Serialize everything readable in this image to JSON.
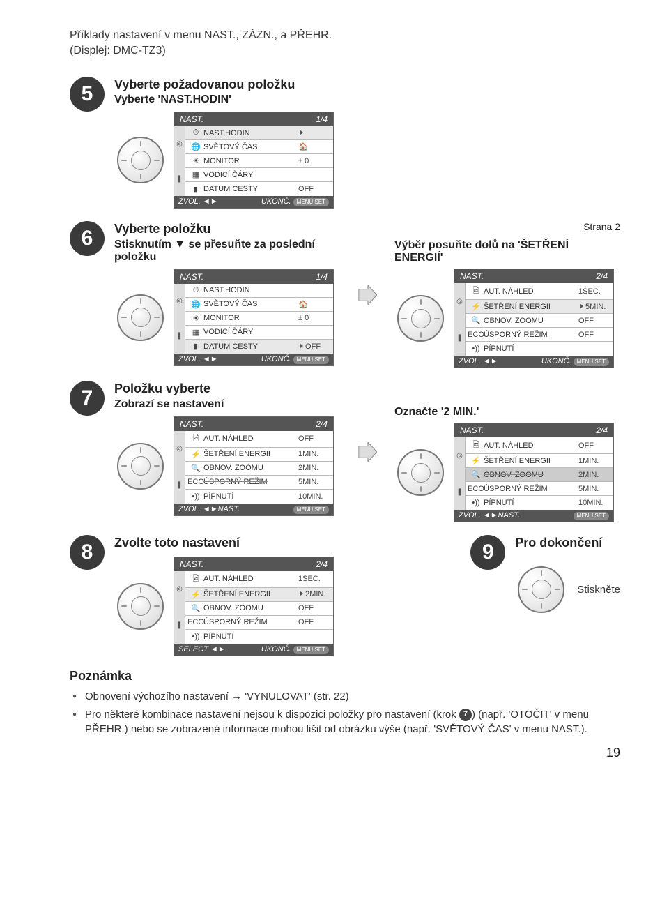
{
  "intro": {
    "line1": "Příklady nastavení v menu NAST., ZÁZN., a PŘEHR.",
    "line2": "(Displej: DMC-TZ3)"
  },
  "steps": {
    "s5": {
      "num": "5",
      "title": "Vyberte požadovanou položku",
      "sub": "Vyberte 'NAST.HODIN'",
      "menu": {
        "header_l": "NAST.",
        "header_r": "1/4",
        "rows": [
          {
            "ico": "⏱",
            "lbl": "NAST.HODIN",
            "val": "",
            "sel": true,
            "tri": true
          },
          {
            "ico": "🌐",
            "lbl": "SVĚTOVÝ ČAS",
            "val": "🏠"
          },
          {
            "ico": "☀",
            "lbl": "MONITOR",
            "val": "± 0"
          },
          {
            "ico": "▦",
            "lbl": "VODICÍ ČÁRY",
            "val": ""
          },
          {
            "ico": "▮",
            "lbl": "DATUM CESTY",
            "val": "OFF"
          }
        ],
        "footer_l": "ZVOL. ◄►",
        "footer_r": "UKONČ.",
        "footer_badge": "MENU SET"
      }
    },
    "s6": {
      "num": "6",
      "title": "Vyberte položku",
      "sub": "Stisknutím ▼ se přesuňte za poslední položku",
      "menuL": {
        "header_l": "NAST.",
        "header_r": "1/4",
        "rows": [
          {
            "ico": "⏱",
            "lbl": "NAST.HODIN",
            "val": ""
          },
          {
            "ico": "🌐",
            "lbl": "SVĚTOVÝ ČAS",
            "val": "🏠"
          },
          {
            "ico": "☀",
            "lbl": "MONITOR",
            "val": "± 0"
          },
          {
            "ico": "▦",
            "lbl": "VODICÍ ČÁRY",
            "val": ""
          },
          {
            "ico": "▮",
            "lbl": "DATUM CESTY",
            "val": "OFF",
            "sel": true,
            "tri": true
          }
        ],
        "footer_l": "ZVOL. ◄►",
        "footer_r": "UKONČ.",
        "footer_badge": "MENU SET"
      },
      "annoR_top": "Výběr posuňte dolů na 'ŠETŘENÍ ENERGIÍ'",
      "page_ref": "Strana 2",
      "menuR": {
        "header_l": "NAST.",
        "header_r": "2/4",
        "rows": [
          {
            "ico": "🖻",
            "lbl": "AUT. NÁHLED",
            "val": "1SEC."
          },
          {
            "ico": "⚡",
            "lbl": "ŠETŘENÍ ENERGII",
            "val": "5MIN.",
            "sel": true,
            "tri": true
          },
          {
            "ico": "🔍",
            "lbl": "OBNOV. ZOOMU",
            "val": "OFF"
          },
          {
            "ico": "ECO",
            "lbl": "ÚSPORNÝ REŽIM",
            "val": "OFF"
          },
          {
            "ico": "•))",
            "lbl": "PÍPNUTÍ",
            "val": ""
          }
        ],
        "footer_l": "ZVOL. ◄►",
        "footer_r": "UKONČ.",
        "footer_badge": "MENU SET"
      }
    },
    "s7": {
      "num": "7",
      "title": "Položku vyberte",
      "sub": "Zobrazí se nastavení",
      "menuL": {
        "header_l": "NAST.",
        "header_r": "2/4",
        "rows": [
          {
            "ico": "🖻",
            "lbl": "AUT. NÁHLED",
            "val": "OFF"
          },
          {
            "ico": "⚡",
            "lbl": "ŠETŘENÍ ENERGII",
            "val": "1MIN."
          },
          {
            "ico": "🔍",
            "lbl": "OBNOV. ZOOMU",
            "val": "2MIN."
          },
          {
            "ico": "ECO",
            "lbl": "ÚSPORNÝ REŽIM",
            "val": "5MIN.",
            "strike": true
          },
          {
            "ico": "•))",
            "lbl": "PÍPNUTÍ",
            "val": "10MIN."
          }
        ],
        "footer_l": "ZVOL. ◄►NAST.",
        "footer_r": "",
        "footer_badge": "MENU SET"
      },
      "annoR_top": "Označte '2 MIN.'",
      "menuR": {
        "header_l": "NAST.",
        "header_r": "2/4",
        "rows": [
          {
            "ico": "🖻",
            "lbl": "AUT. NÁHLED",
            "val": "OFF"
          },
          {
            "ico": "⚡",
            "lbl": "ŠETŘENÍ ENERGII",
            "val": "1MIN."
          },
          {
            "ico": "🔍",
            "lbl": "OBNOV. ZOOMU",
            "val": "2MIN.",
            "hl": true,
            "strike": true
          },
          {
            "ico": "ECO",
            "lbl": "ÚSPORNÝ REŽIM",
            "val": "5MIN."
          },
          {
            "ico": "•))",
            "lbl": "PÍPNUTÍ",
            "val": "10MIN."
          }
        ],
        "footer_l": "ZVOL. ◄►NAST.",
        "footer_r": "",
        "footer_badge": "MENU SET"
      }
    },
    "s8": {
      "num": "8",
      "title": "Zvolte toto nastavení",
      "menu": {
        "header_l": "NAST.",
        "header_r": "2/4",
        "rows": [
          {
            "ico": "🖻",
            "lbl": "AUT. NÁHLED",
            "val": "1SEC."
          },
          {
            "ico": "⚡",
            "lbl": "ŠETŘENÍ ENERGII",
            "val": "2MIN.",
            "sel": true,
            "tri": true
          },
          {
            "ico": "🔍",
            "lbl": "OBNOV. ZOOMU",
            "val": "OFF"
          },
          {
            "ico": "ECO",
            "lbl": "ÚSPORNÝ REŽIM",
            "val": "OFF"
          },
          {
            "ico": "•))",
            "lbl": "PÍPNUTÍ",
            "val": ""
          }
        ],
        "footer_l": "SELECT ◄►",
        "footer_r": "UKONČ.",
        "footer_badge": "MENU SET"
      }
    },
    "s9": {
      "num": "9",
      "title": "Pro dokončení",
      "press": "Stiskněte"
    }
  },
  "note": {
    "heading": "Poznámka",
    "items": [
      "Obnovení výchozího nastavení → 'VYNULOVAT' (str. 22)",
      "Pro některé kombinace nastavení nejsou k dispozici položky pro nastavení (krok |7|) (např. 'OTOČIT' v menu PŘEHR.) nebo se zobrazené informace mohou lišit od obrázku výše (např. 'SVĚTOVÝ ČAS' v menu NAST.)."
    ]
  },
  "page_num": "19",
  "colors": {
    "circle_bg": "#3a3a3a",
    "menu_header_bg": "#555555",
    "menu_sel_bg": "#e8e8e8",
    "text": "#3a3a3a"
  }
}
